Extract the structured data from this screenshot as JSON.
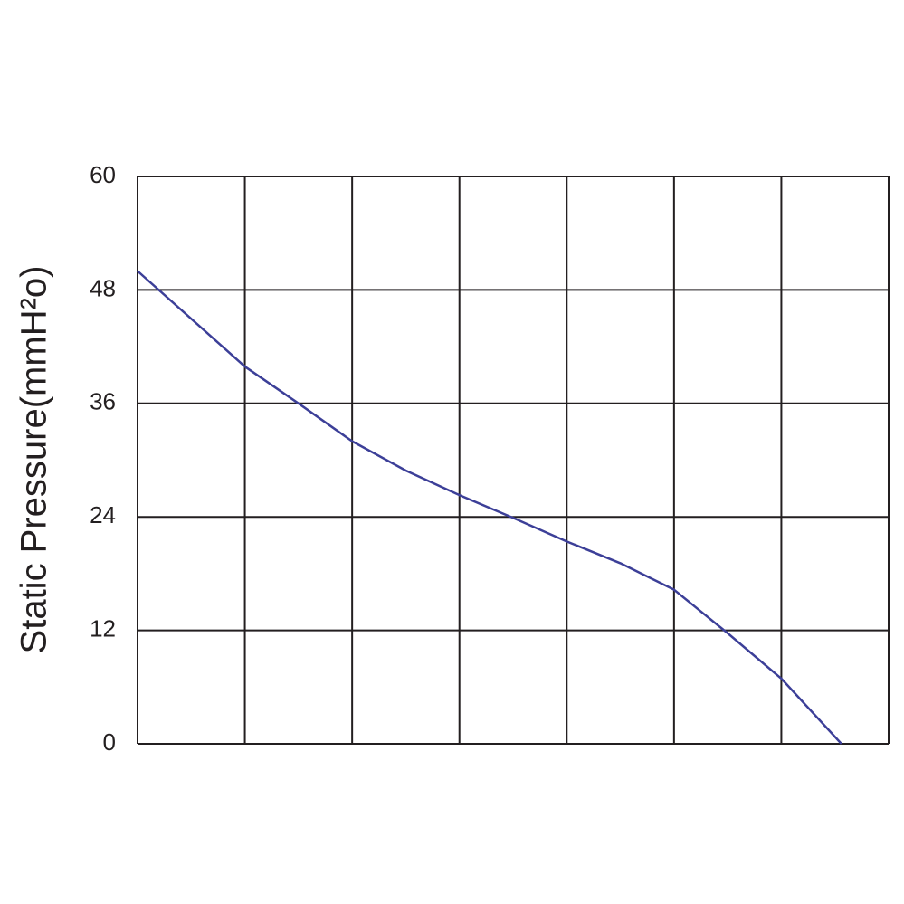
{
  "chart_data": {
    "type": "line",
    "y_label": "Static Pressure(mmH²o)",
    "x": [
      0,
      1,
      1.5,
      2,
      2.5,
      3,
      3.5,
      4,
      4.5,
      5,
      5.5,
      6,
      6.56
    ],
    "series": [
      {
        "color": "#3c3f98",
        "values": [
          50,
          39.9,
          36,
          32,
          28.9,
          26.3,
          23.9,
          21.4,
          19.1,
          16.3,
          11.7,
          6.9,
          0
        ]
      }
    ],
    "xlim": [
      0,
      7
    ],
    "xticks": [
      0,
      1,
      2,
      3,
      4,
      5,
      6,
      7
    ],
    "ylim": [
      0,
      60
    ],
    "yticks": [
      0,
      12,
      24,
      36,
      48,
      60
    ],
    "grid": true
  }
}
